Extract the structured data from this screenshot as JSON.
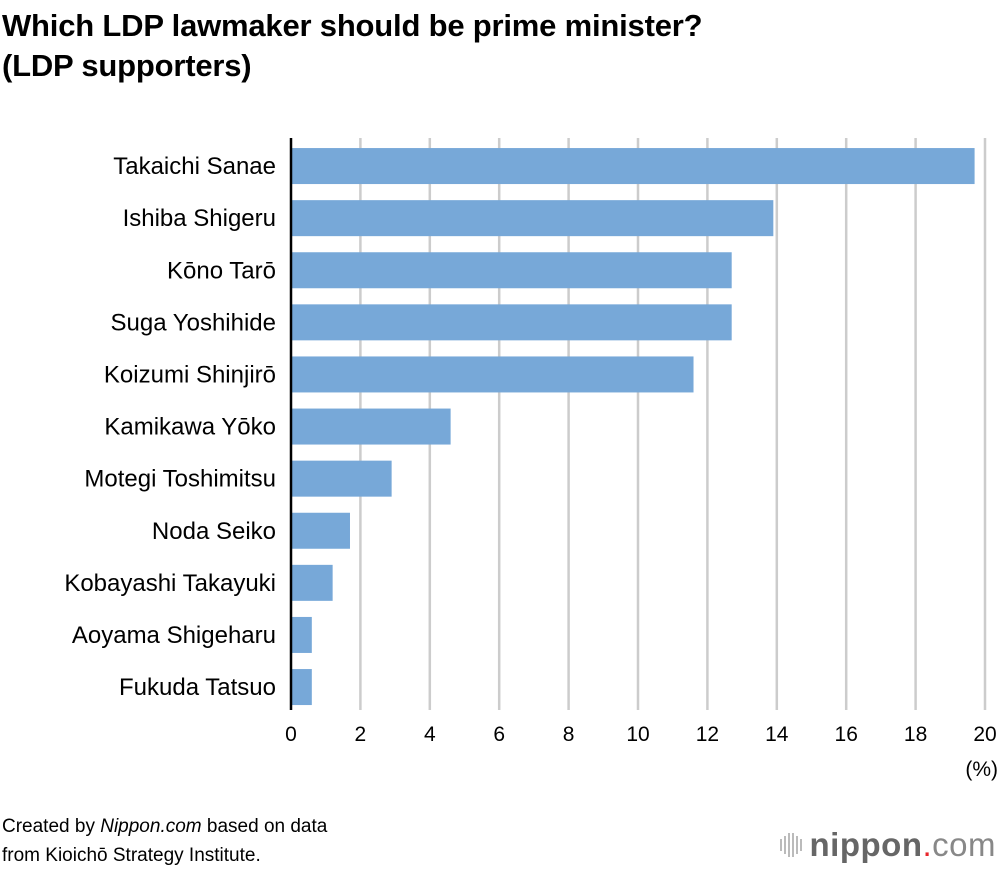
{
  "chart_data": {
    "type": "bar",
    "orientation": "horizontal",
    "title_line1": "Which LDP lawmaker should be prime minister?",
    "title_line2": "(LDP supporters)",
    "categories": [
      "Takaichi Sanae",
      "Ishiba Shigeru",
      "Kōno Tarō",
      "Suga Yoshihide",
      "Koizumi Shinjirō",
      "Kamikawa Yōko",
      "Motegi Toshimitsu",
      "Noda Seiko",
      "Kobayashi Takayuki",
      "Aoyama Shigeharu",
      "Fukuda Tatsuo"
    ],
    "values": [
      19.7,
      13.9,
      12.7,
      12.7,
      11.6,
      4.6,
      2.9,
      1.7,
      1.2,
      0.6,
      0.6
    ],
    "xlim": [
      0,
      20
    ],
    "xticks": [
      0,
      2,
      4,
      6,
      8,
      10,
      12,
      14,
      16,
      18,
      20
    ],
    "xlabel": "(%)",
    "grid": true,
    "bar_color": "#77a8d8"
  },
  "footer": {
    "credit_prefix": "Created by ",
    "credit_source": "Nippon.com",
    "credit_suffix": " based on data",
    "credit_line2": "from Kioichō Strategy Institute."
  },
  "logo": {
    "name": "nippon",
    "dot": ".",
    "tld": "com"
  }
}
